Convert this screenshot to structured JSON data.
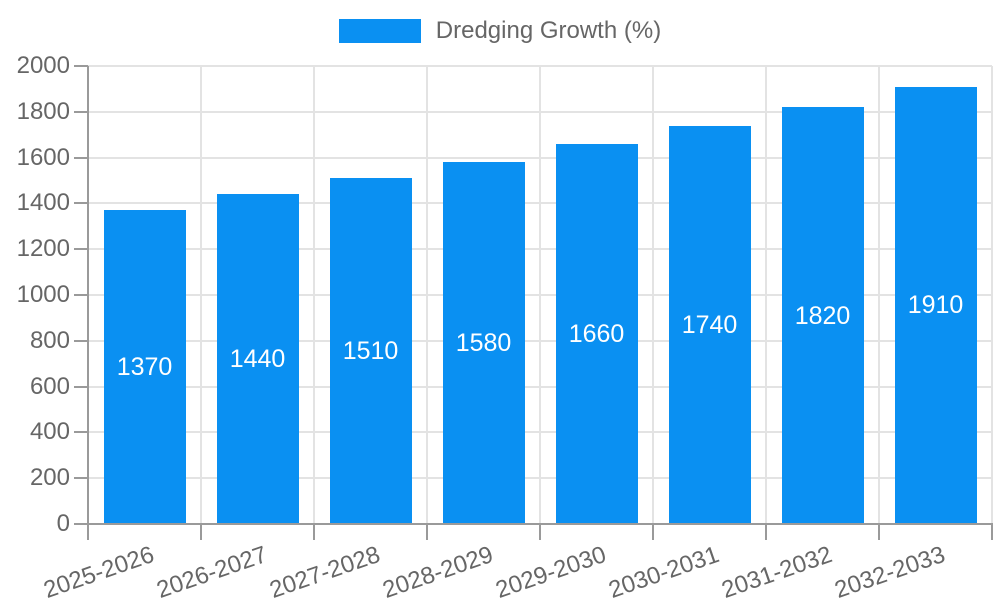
{
  "chart_data": {
    "type": "bar",
    "title": "",
    "legend": "Dredging Growth (%)",
    "legend_position": "top",
    "categories": [
      "2025-2026",
      "2026-2027",
      "2027-2028",
      "2028-2029",
      "2029-2030",
      "2030-2031",
      "2031-2032",
      "2032-2033"
    ],
    "values": [
      1370,
      1440,
      1510,
      1580,
      1660,
      1740,
      1820,
      1910
    ],
    "xlabel": "",
    "ylabel": "",
    "ylim": [
      0,
      2000
    ],
    "y_ticks": [
      0,
      200,
      400,
      600,
      800,
      1000,
      1200,
      1400,
      1600,
      1800,
      2000
    ],
    "grid": true,
    "value_labels_inside_bars": true,
    "colors": {
      "bar": "#0a90f2",
      "grid": "#e3e3e3",
      "axis": "#9a9a9a",
      "tick_text": "#666666",
      "value_label_text": "#ffffff",
      "background": "#ffffff"
    }
  }
}
